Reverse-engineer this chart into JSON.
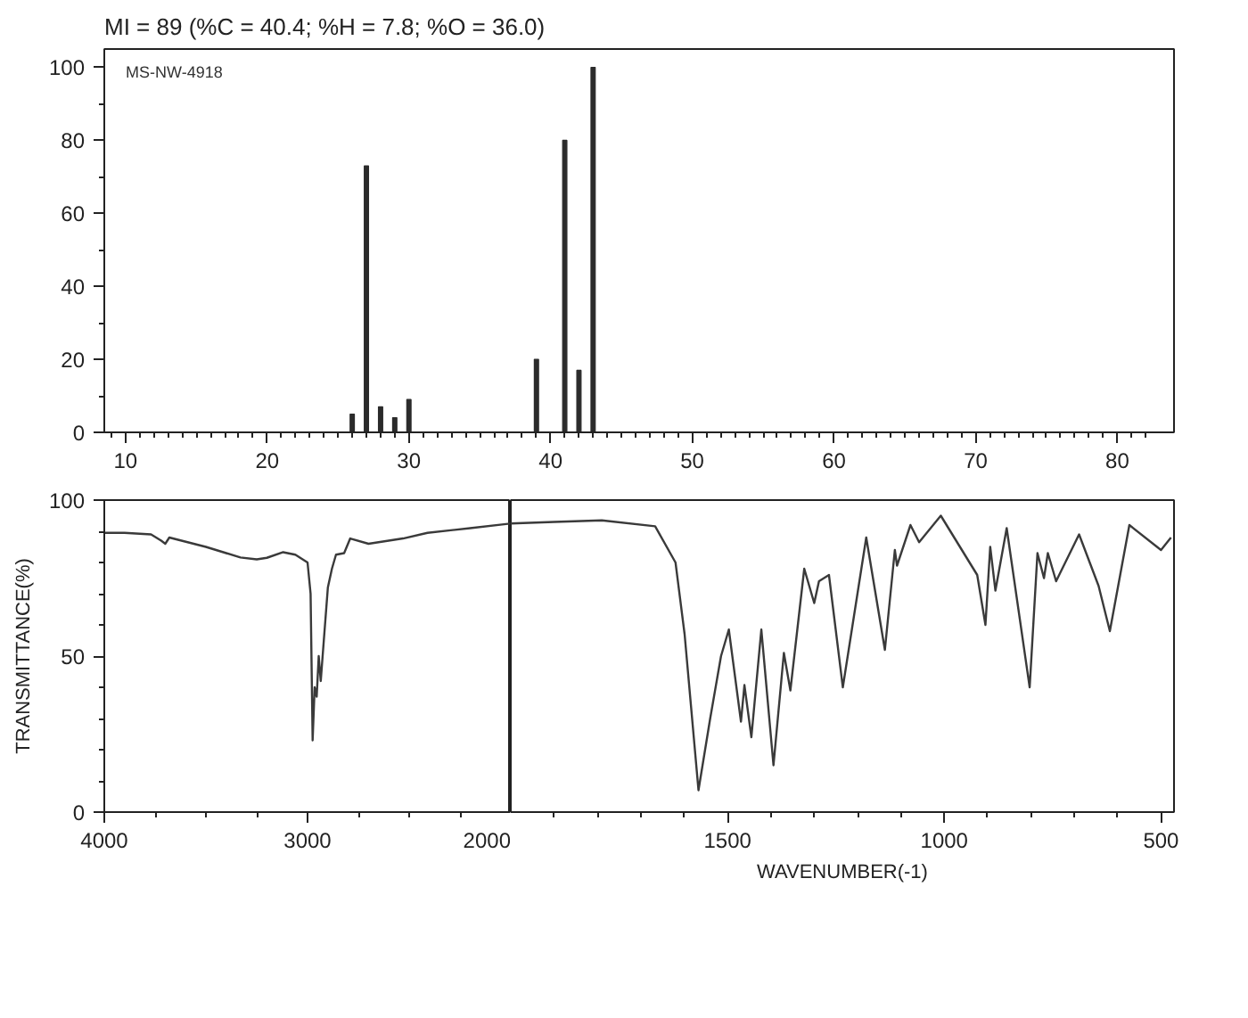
{
  "chart_data": [
    {
      "type": "bar",
      "title": "MI = 89 (%C = 40.4; %H = 7.8; %O = 36.0)",
      "annotations": [
        "MS-NW-4918"
      ],
      "x": [
        26,
        27,
        28,
        29,
        30,
        39,
        41,
        42,
        43
      ],
      "values": [
        5,
        73,
        7,
        4,
        9,
        20,
        80,
        17,
        100
      ],
      "color": "#2b2b2b",
      "xlim": [
        8.5,
        84
      ],
      "ylim": [
        0,
        105
      ],
      "xticks": [
        {
          "value": 9,
          "label": null
        },
        10,
        {
          "value": 11,
          "label": null
        },
        {
          "value": 12,
          "label": null
        },
        {
          "value": 13,
          "label": null
        },
        {
          "value": 14,
          "label": null
        },
        {
          "value": 15,
          "label": null
        },
        {
          "value": 16,
          "label": null
        },
        {
          "value": 17,
          "label": null
        },
        {
          "value": 18,
          "label": null
        },
        {
          "value": 19,
          "label": null
        },
        20,
        {
          "value": 21,
          "label": null
        },
        {
          "value": 22,
          "label": null
        },
        {
          "value": 23,
          "label": null
        },
        {
          "value": 24,
          "label": null
        },
        {
          "value": 25,
          "label": null
        },
        {
          "value": 26,
          "label": null
        },
        {
          "value": 27,
          "label": null
        },
        {
          "value": 28,
          "label": null
        },
        {
          "value": 29,
          "label": null
        },
        30,
        {
          "value": 31,
          "label": null
        },
        {
          "value": 32,
          "label": null
        },
        {
          "value": 33,
          "label": null
        },
        {
          "value": 34,
          "label": null
        },
        {
          "value": 35,
          "label": null
        },
        {
          "value": 36,
          "label": null
        },
        {
          "value": 37,
          "label": null
        },
        {
          "value": 38,
          "label": null
        },
        {
          "value": 39,
          "label": null
        },
        40,
        {
          "value": 41,
          "label": null
        },
        {
          "value": 42,
          "label": null
        },
        {
          "value": 43,
          "label": null
        },
        {
          "value": 44,
          "label": null
        },
        {
          "value": 45,
          "label": null
        },
        {
          "value": 46,
          "label": null
        },
        {
          "value": 47,
          "label": null
        },
        {
          "value": 48,
          "label": null
        },
        {
          "value": 49,
          "label": null
        },
        50,
        {
          "value": 51,
          "label": null
        },
        {
          "value": 52,
          "label": null
        },
        {
          "value": 53,
          "label": null
        },
        {
          "value": 54,
          "label": null
        },
        {
          "value": 55,
          "label": null
        },
        {
          "value": 56,
          "label": null
        },
        {
          "value": 57,
          "label": null
        },
        {
          "value": 58,
          "label": null
        },
        {
          "value": 59,
          "label": null
        },
        60,
        {
          "value": 61,
          "label": null
        },
        {
          "value": 62,
          "label": null
        },
        {
          "value": 63,
          "label": null
        },
        {
          "value": 64,
          "label": null
        },
        {
          "value": 65,
          "label": null
        },
        {
          "value": 66,
          "label": null
        },
        {
          "value": 67,
          "label": null
        },
        {
          "value": 68,
          "label": null
        },
        {
          "value": 69,
          "label": null
        },
        70,
        {
          "value": 71,
          "label": null
        },
        {
          "value": 72,
          "label": null
        },
        {
          "value": 73,
          "label": null
        },
        {
          "value": 74,
          "label": null
        },
        {
          "value": 75,
          "label": null
        },
        {
          "value": 76,
          "label": null
        },
        {
          "value": 77,
          "label": null
        },
        {
          "value": 78,
          "label": null
        },
        {
          "value": 79,
          "label": null
        },
        80,
        {
          "value": 81,
          "label": null
        },
        {
          "value": 82,
          "label": null
        }
      ],
      "yticks": [
        0,
        {
          "value": 10,
          "label": null
        },
        20,
        {
          "value": 30,
          "label": null
        },
        40,
        {
          "value": 50,
          "label": null
        },
        60,
        {
          "value": 70,
          "label": null
        },
        80,
        {
          "value": 90,
          "label": null
        },
        100
      ]
    },
    {
      "type": "line",
      "ylabel": "TRANSMITTANCE(%)",
      "x": [
        4000,
        3900,
        3770,
        3720,
        3700,
        3680,
        3620,
        3500,
        3400,
        3330,
        3250,
        3200,
        3120,
        3060,
        3000,
        2985,
        2975,
        2965,
        2955,
        2945,
        2935,
        2920,
        2900,
        2880,
        2860,
        2820,
        2790,
        2700,
        2530,
        2410,
        2200,
        2000
      ],
      "values": [
        89.5,
        89.5,
        89,
        87,
        86,
        88,
        87,
        85,
        83,
        81.6,
        81,
        81.5,
        83.3,
        82.5,
        80,
        70,
        23,
        40,
        37,
        50,
        42,
        55,
        72,
        78,
        82.5,
        83,
        87.7,
        86,
        87.7,
        89.5,
        91,
        92.5
      ],
      "color": "#3a3a3a",
      "xlim": [
        4000,
        2000
      ],
      "ylim": [
        0,
        100
      ],
      "xticks": [
        4000,
        {
          "value": 3750,
          "label": null
        },
        {
          "value": 3500,
          "label": null
        },
        {
          "value": 3250,
          "label": null
        },
        3000,
        {
          "value": 2750,
          "label": null
        },
        {
          "value": 2500,
          "label": null
        },
        {
          "value": 2250,
          "label": null
        },
        2000
      ],
      "yticks": [
        0,
        {
          "value": 10,
          "label": null
        },
        {
          "value": 20,
          "label": null
        },
        {
          "value": 30,
          "label": null
        },
        {
          "value": 40,
          "label": null
        },
        50,
        {
          "value": 60,
          "label": null
        },
        {
          "value": 70,
          "label": null
        },
        {
          "value": 80,
          "label": null
        },
        {
          "value": 90,
          "label": null
        },
        100
      ]
    },
    {
      "type": "line",
      "xlabel": "WAVENUMBER(-1)",
      "tick_labels": "x",
      "x": [
        2000,
        1900,
        1790,
        1667,
        1620,
        1599,
        1567,
        1540,
        1515,
        1497,
        1469,
        1461,
        1445,
        1422,
        1394,
        1370,
        1355,
        1323,
        1300,
        1289,
        1266,
        1234,
        1180,
        1137,
        1114,
        1109,
        1078,
        1058,
        1008,
        924,
        905,
        894,
        882,
        856,
        803,
        785,
        770,
        761,
        742,
        689,
        644,
        618,
        573,
        500,
        477
      ],
      "values": [
        92.5,
        93,
        93.5,
        91.6,
        80,
        57,
        7,
        30,
        50,
        58.5,
        29,
        40.7,
        24,
        58.5,
        15,
        51,
        39,
        78,
        67,
        74,
        76,
        40,
        88,
        52,
        84,
        79,
        92,
        86.5,
        95,
        76,
        60,
        85,
        71,
        91,
        40,
        83,
        75,
        83,
        74,
        89,
        72.5,
        58,
        92,
        84,
        88
      ],
      "color": "#3a3a3a",
      "xlim": [
        2000,
        470
      ],
      "ylim": [
        0,
        100
      ],
      "xticks": [
        {
          "value": 1900,
          "label": null
        },
        {
          "value": 1800,
          "label": null
        },
        {
          "value": 1700,
          "label": null
        },
        {
          "value": 1600,
          "label": null
        },
        1500,
        {
          "value": 1400,
          "label": null
        },
        {
          "value": 1300,
          "label": null
        },
        {
          "value": 1200,
          "label": null
        },
        {
          "value": 1100,
          "label": null
        },
        1000,
        {
          "value": 900,
          "label": null
        },
        {
          "value": 800,
          "label": null
        },
        {
          "value": 700,
          "label": null
        },
        {
          "value": 600,
          "label": null
        },
        500
      ]
    }
  ]
}
